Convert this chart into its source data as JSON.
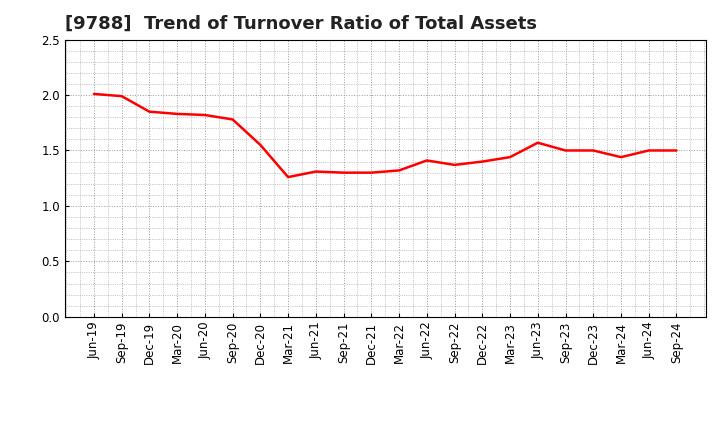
{
  "title": "[9788]  Trend of Turnover Ratio of Total Assets",
  "x_labels": [
    "Jun-19",
    "Sep-19",
    "Dec-19",
    "Mar-20",
    "Jun-20",
    "Sep-20",
    "Dec-20",
    "Mar-21",
    "Jun-21",
    "Sep-21",
    "Dec-21",
    "Mar-22",
    "Jun-22",
    "Sep-22",
    "Dec-22",
    "Mar-23",
    "Jun-23",
    "Sep-23",
    "Dec-23",
    "Mar-24",
    "Jun-24",
    "Sep-24"
  ],
  "y_values": [
    2.01,
    1.99,
    1.85,
    1.83,
    1.82,
    1.78,
    1.55,
    1.26,
    1.31,
    1.3,
    1.3,
    1.32,
    1.41,
    1.37,
    1.4,
    1.44,
    1.57,
    1.5,
    1.5,
    1.44,
    1.5,
    1.5
  ],
  "ylim": [
    0.0,
    2.5
  ],
  "yticks": [
    0.0,
    0.5,
    1.0,
    1.5,
    2.0,
    2.5
  ],
  "line_color": "#ff0000",
  "line_width": 1.8,
  "grid_color": "#999999",
  "bg_color": "#ffffff",
  "title_fontsize": 13,
  "tick_fontsize": 8.5
}
